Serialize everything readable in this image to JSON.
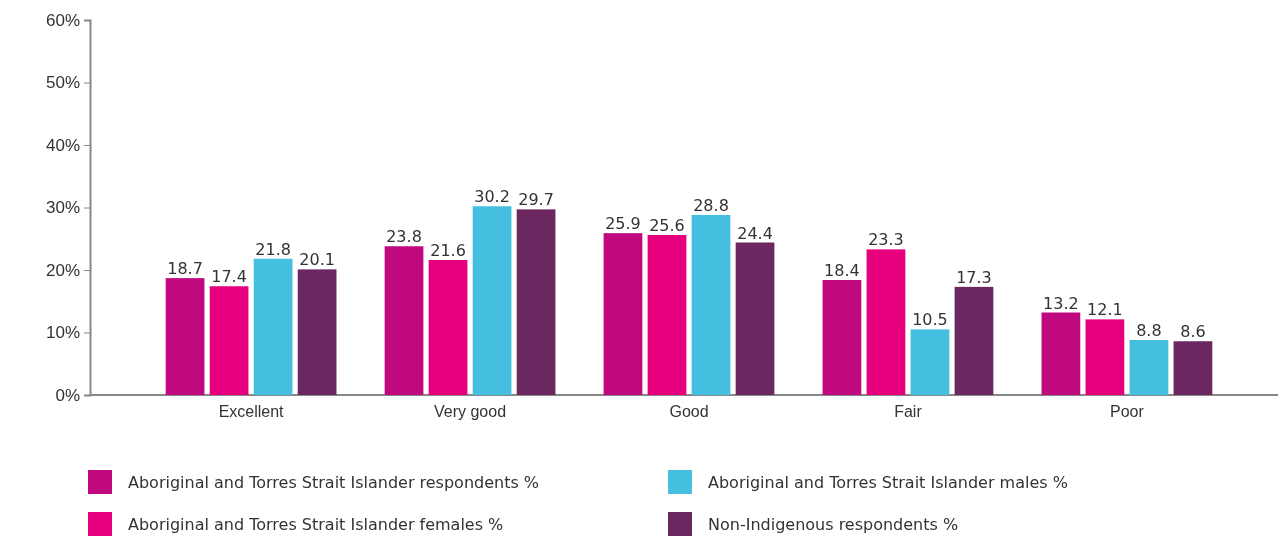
{
  "chart_data": {
    "type": "bar",
    "categories": [
      "Excellent",
      "Very good",
      "Good",
      "Fair",
      "Poor"
    ],
    "series": [
      {
        "name": "Aboriginal and Torres Strait Islander respondents %",
        "color": "#c0097f",
        "values": [
          18.7,
          23.8,
          25.9,
          18.4,
          13.2
        ]
      },
      {
        "name": "Aboriginal and Torres Strait Islander females %",
        "color": "#e6007e",
        "values": [
          17.4,
          21.6,
          25.6,
          23.3,
          12.1
        ]
      },
      {
        "name": "Aboriginal and Torres Strait Islander males %",
        "color": "#45bfe0",
        "values": [
          21.8,
          30.2,
          28.8,
          10.5,
          8.8
        ]
      },
      {
        "name": "Non-Indigenous respondents %",
        "color": "#6b2760",
        "values": [
          20.1,
          29.7,
          24.4,
          17.3,
          8.6
        ]
      }
    ],
    "ylim": [
      0,
      60
    ],
    "yticks": [
      {
        "value": 0,
        "label": "0%"
      },
      {
        "value": 10,
        "label": "10%"
      },
      {
        "value": 20,
        "label": "20%"
      },
      {
        "value": 30,
        "label": "30%"
      },
      {
        "value": 40,
        "label": "40%"
      },
      {
        "value": 50,
        "label": "50%"
      },
      {
        "value": 60,
        "label": "60%"
      }
    ],
    "grid": false,
    "legend": "bottom",
    "data_labels": true
  }
}
